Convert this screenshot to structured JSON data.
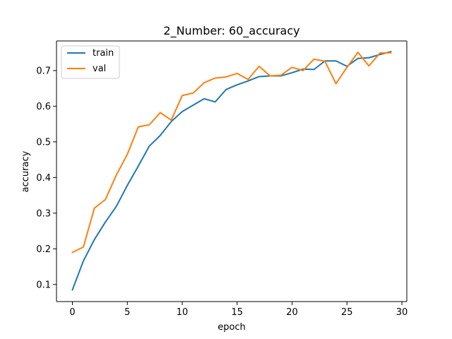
{
  "chart_data": {
    "type": "line",
    "title": "2_Number: 60_accuracy",
    "xlabel": "epoch",
    "ylabel": "accuracy",
    "x": [
      0,
      1,
      2,
      3,
      4,
      5,
      6,
      7,
      8,
      9,
      10,
      11,
      12,
      13,
      14,
      15,
      16,
      17,
      18,
      19,
      20,
      21,
      22,
      23,
      24,
      25,
      26,
      27,
      28,
      29
    ],
    "xlim": [
      -1.45,
      30.45
    ],
    "ylim": [
      0.052,
      0.783
    ],
    "xticks": [
      0,
      5,
      10,
      15,
      20,
      25,
      30
    ],
    "yticks": [
      0.1,
      0.2,
      0.3,
      0.4,
      0.5,
      0.6,
      0.7
    ],
    "xtick_labels": [
      "0",
      "5",
      "10",
      "15",
      "20",
      "25",
      "30"
    ],
    "ytick_labels": [
      "0.1",
      "0.2",
      "0.3",
      "0.4",
      "0.5",
      "0.6",
      "0.7"
    ],
    "grid": false,
    "legend_position": "upper-left",
    "series": [
      {
        "name": "train",
        "color": "#1f77b4",
        "values": [
          0.085,
          0.166,
          0.226,
          0.275,
          0.319,
          0.378,
          0.432,
          0.488,
          0.518,
          0.557,
          0.585,
          0.603,
          0.621,
          0.612,
          0.647,
          0.66,
          0.671,
          0.683,
          0.685,
          0.685,
          0.694,
          0.704,
          0.703,
          0.727,
          0.727,
          0.712,
          0.734,
          0.736,
          0.745,
          0.753
        ]
      },
      {
        "name": "val",
        "color": "#ff7f0e",
        "values": [
          0.19,
          0.205,
          0.314,
          0.338,
          0.407,
          0.465,
          0.542,
          0.548,
          0.582,
          0.561,
          0.63,
          0.637,
          0.666,
          0.679,
          0.682,
          0.692,
          0.675,
          0.712,
          0.685,
          0.687,
          0.709,
          0.7,
          0.732,
          0.726,
          0.663,
          0.709,
          0.751,
          0.713,
          0.749,
          0.75
        ]
      }
    ]
  }
}
